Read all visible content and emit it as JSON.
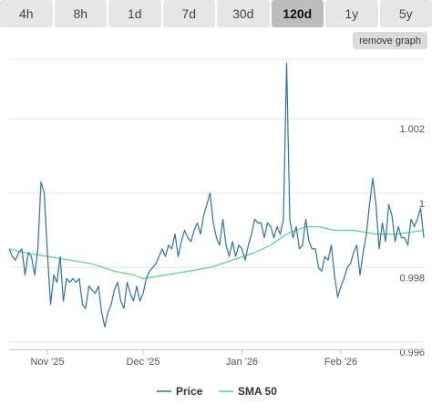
{
  "range_tabs": [
    {
      "label": "4h",
      "active": false
    },
    {
      "label": "8h",
      "active": false
    },
    {
      "label": "1d",
      "active": false
    },
    {
      "label": "7d",
      "active": false
    },
    {
      "label": "30d",
      "active": false
    },
    {
      "label": "120d",
      "active": true
    },
    {
      "label": "1y",
      "active": false
    },
    {
      "label": "5y",
      "active": false
    }
  ],
  "remove_graph_label": "remove graph",
  "chart_data": {
    "type": "line",
    "title": "",
    "xlabel": "",
    "ylabel": "",
    "ylim": [
      0.9958,
      1.0036
    ],
    "xlim": [
      "2025-10-20",
      "2026-02-27"
    ],
    "y_axis_side": "right",
    "y_ticks": [
      0.996,
      0.998,
      1,
      1.002
    ],
    "y_tick_labels": [
      "0.996",
      "0.998",
      "1",
      "1.002"
    ],
    "x_ticks": [
      "2025-11-01",
      "2025-12-01",
      "2026-01-01",
      "2026-02-01"
    ],
    "x_tick_labels": [
      "Nov '25",
      "Dec '25",
      "Jan '26",
      "Feb '26"
    ],
    "grid": "horizontal",
    "legend_position": "bottom-center",
    "series": [
      {
        "name": "Price",
        "color": "#2f72a9",
        "points": [
          [
            "2025-10-20",
            0.9985
          ],
          [
            "2025-10-21",
            0.9983
          ],
          [
            "2025-10-22",
            0.9982
          ],
          [
            "2025-10-23",
            0.9984
          ],
          [
            "2025-10-24",
            0.9985
          ],
          [
            "2025-10-25",
            0.9978
          ],
          [
            "2025-10-26",
            0.9984
          ],
          [
            "2025-10-27",
            0.9983
          ],
          [
            "2025-10-28",
            0.9978
          ],
          [
            "2025-10-29",
            0.9985
          ],
          [
            "2025-10-30",
            1.0003
          ],
          [
            "2025-10-31",
            1.0
          ],
          [
            "2025-11-01",
            0.9984
          ],
          [
            "2025-11-02",
            0.997
          ],
          [
            "2025-11-03",
            0.9978
          ],
          [
            "2025-11-04",
            0.9976
          ],
          [
            "2025-11-05",
            0.9983
          ],
          [
            "2025-11-06",
            0.9971
          ],
          [
            "2025-11-07",
            0.9977
          ],
          [
            "2025-11-08",
            0.9976
          ],
          [
            "2025-11-09",
            0.9977
          ],
          [
            "2025-11-10",
            0.9976
          ],
          [
            "2025-11-11",
            0.9977
          ],
          [
            "2025-11-12",
            0.997
          ],
          [
            "2025-11-13",
            0.9969
          ],
          [
            "2025-11-14",
            0.9975
          ],
          [
            "2025-11-15",
            0.9974
          ],
          [
            "2025-11-16",
            0.9973
          ],
          [
            "2025-11-17",
            0.9975
          ],
          [
            "2025-11-18",
            0.9968
          ],
          [
            "2025-11-19",
            0.9964
          ],
          [
            "2025-11-20",
            0.9968
          ],
          [
            "2025-11-21",
            0.997
          ],
          [
            "2025-11-22",
            0.9974
          ],
          [
            "2025-11-23",
            0.9976
          ],
          [
            "2025-11-24",
            0.9971
          ],
          [
            "2025-11-25",
            0.9969
          ],
          [
            "2025-11-26",
            0.9976
          ],
          [
            "2025-11-27",
            0.9973
          ],
          [
            "2025-11-28",
            0.9971
          ],
          [
            "2025-11-29",
            0.9975
          ],
          [
            "2025-11-30",
            0.9971
          ],
          [
            "2025-12-01",
            0.9973
          ],
          [
            "2025-12-02",
            0.9977
          ],
          [
            "2025-12-03",
            0.9979
          ],
          [
            "2025-12-04",
            0.998
          ],
          [
            "2025-12-05",
            0.9981
          ],
          [
            "2025-12-06",
            0.9983
          ],
          [
            "2025-12-07",
            0.9985
          ],
          [
            "2025-12-08",
            0.9983
          ],
          [
            "2025-12-09",
            0.9986
          ],
          [
            "2025-12-10",
            0.9985
          ],
          [
            "2025-12-11",
            0.9989
          ],
          [
            "2025-12-12",
            0.9983
          ],
          [
            "2025-12-13",
            0.9987
          ],
          [
            "2025-12-14",
            0.999
          ],
          [
            "2025-12-15",
            0.9988
          ],
          [
            "2025-12-16",
            0.9987
          ],
          [
            "2025-12-17",
            0.999
          ],
          [
            "2025-12-18",
            0.9992
          ],
          [
            "2025-12-19",
            0.9989
          ],
          [
            "2025-12-20",
            0.9994
          ],
          [
            "2025-12-21",
            0.9997
          ],
          [
            "2025-12-22",
            1.0
          ],
          [
            "2025-12-23",
            0.9992
          ],
          [
            "2025-12-24",
            0.9988
          ],
          [
            "2025-12-25",
            0.9986
          ],
          [
            "2025-12-26",
            0.9993
          ],
          [
            "2025-12-27",
            0.9986
          ],
          [
            "2025-12-28",
            0.9983
          ],
          [
            "2025-12-29",
            0.9987
          ],
          [
            "2025-12-30",
            0.9983
          ],
          [
            "2025-12-31",
            0.9986
          ],
          [
            "2026-01-01",
            0.9985
          ],
          [
            "2026-01-02",
            0.9982
          ],
          [
            "2026-01-03",
            0.9986
          ],
          [
            "2026-01-04",
            0.9989
          ],
          [
            "2026-01-05",
            0.9993
          ],
          [
            "2026-01-06",
            0.9992
          ],
          [
            "2026-01-07",
            0.9992
          ],
          [
            "2026-01-08",
            0.9988
          ],
          [
            "2026-01-09",
            0.9992
          ],
          [
            "2026-01-10",
            0.9991
          ],
          [
            "2026-01-11",
            0.9988
          ],
          [
            "2026-01-12",
            0.9991
          ],
          [
            "2026-01-13",
            0.9989
          ],
          [
            "2026-01-14",
            0.9993
          ],
          [
            "2026-01-15",
            1.0035
          ],
          [
            "2026-01-16",
            0.9993
          ],
          [
            "2026-01-17",
            0.9988
          ],
          [
            "2026-01-18",
            0.9991
          ],
          [
            "2026-01-19",
            0.9985
          ],
          [
            "2026-01-20",
            0.9986
          ],
          [
            "2026-01-21",
            0.9993
          ],
          [
            "2026-01-22",
            0.9987
          ],
          [
            "2026-01-23",
            0.9985
          ],
          [
            "2026-01-24",
            0.9985
          ],
          [
            "2026-01-25",
            0.998
          ],
          [
            "2026-01-26",
            0.9979
          ],
          [
            "2026-01-27",
            0.9983
          ],
          [
            "2026-01-28",
            0.9982
          ],
          [
            "2026-01-29",
            0.9986
          ],
          [
            "2026-01-30",
            0.9978
          ],
          [
            "2026-01-31",
            0.9972
          ],
          [
            "2026-02-01",
            0.9975
          ],
          [
            "2026-02-02",
            0.9977
          ],
          [
            "2026-02-03",
            0.998
          ],
          [
            "2026-02-04",
            0.9981
          ],
          [
            "2026-02-05",
            0.9984
          ],
          [
            "2026-02-06",
            0.9986
          ],
          [
            "2026-02-07",
            0.9978
          ],
          [
            "2026-02-08",
            0.9984
          ],
          [
            "2026-02-09",
            0.9989
          ],
          [
            "2026-02-10",
            0.9997
          ],
          [
            "2026-02-11",
            1.0004
          ],
          [
            "2026-02-12",
            0.9997
          ],
          [
            "2026-02-13",
            0.9985
          ],
          [
            "2026-02-14",
            0.9992
          ],
          [
            "2026-02-15",
            0.9987
          ],
          [
            "2026-02-16",
            0.9997
          ],
          [
            "2026-02-17",
            0.9994
          ],
          [
            "2026-02-18",
            0.9987
          ],
          [
            "2026-02-19",
            0.9991
          ],
          [
            "2026-02-20",
            0.9988
          ],
          [
            "2026-02-21",
            0.9988
          ],
          [
            "2026-02-22",
            0.9986
          ],
          [
            "2026-02-23",
            0.9993
          ],
          [
            "2026-02-24",
            0.9991
          ],
          [
            "2026-02-25",
            0.9993
          ],
          [
            "2026-02-26",
            0.9996
          ],
          [
            "2026-02-27",
            0.9988
          ]
        ]
      },
      {
        "name": "SMA 50",
        "color": "#5bd48e",
        "points": [
          [
            "2025-10-20",
            0.9985
          ],
          [
            "2025-10-25",
            0.9984
          ],
          [
            "2025-11-01",
            0.9983
          ],
          [
            "2025-11-08",
            0.9982
          ],
          [
            "2025-11-15",
            0.9981
          ],
          [
            "2025-11-22",
            0.9979
          ],
          [
            "2025-11-28",
            0.9978
          ],
          [
            "2025-12-01",
            0.9977
          ],
          [
            "2025-12-08",
            0.9978
          ],
          [
            "2025-12-15",
            0.9979
          ],
          [
            "2025-12-22",
            0.998
          ],
          [
            "2025-12-29",
            0.9982
          ],
          [
            "2026-01-05",
            0.9984
          ],
          [
            "2026-01-10",
            0.9986
          ],
          [
            "2026-01-15",
            0.9989
          ],
          [
            "2026-01-18",
            0.999
          ],
          [
            "2026-01-21",
            0.9991
          ],
          [
            "2026-01-25",
            0.9991
          ],
          [
            "2026-01-30",
            0.999
          ],
          [
            "2026-02-05",
            0.999
          ],
          [
            "2026-02-12",
            0.9989
          ],
          [
            "2026-02-19",
            0.9989
          ],
          [
            "2026-02-27",
            0.999
          ]
        ]
      }
    ]
  }
}
